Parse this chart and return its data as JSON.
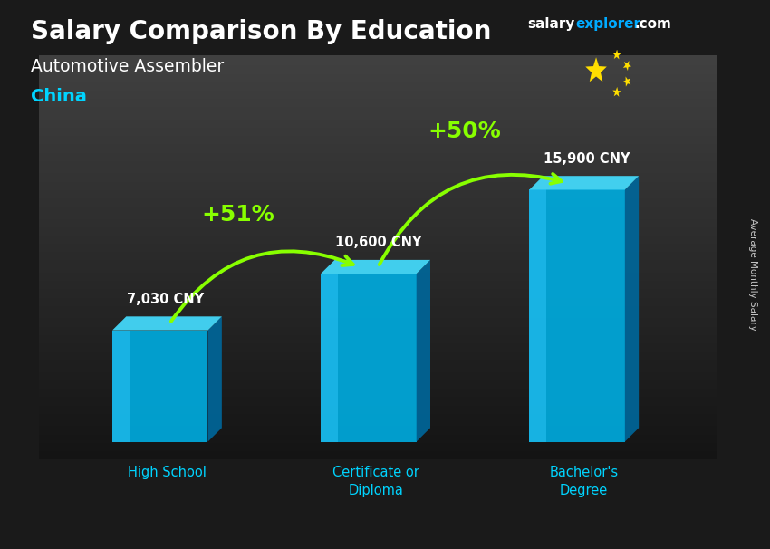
{
  "title_main": "Salary Comparison By Education",
  "title_sub": "Automotive Assembler",
  "title_country": "China",
  "categories": [
    "High School",
    "Certificate or\nDiploma",
    "Bachelor's\nDegree"
  ],
  "values": [
    7030,
    10600,
    15900
  ],
  "value_labels": [
    "7,030 CNY",
    "10,600 CNY",
    "15,900 CNY"
  ],
  "pct_labels": [
    "+51%",
    "+50%"
  ],
  "bar_face_color": "#00aadd",
  "bar_highlight": "#33ccff",
  "bar_side_color": "#006699",
  "bar_top_color": "#44ddff",
  "bg_dark": "#1a1a1a",
  "bg_mid": "#2a2a2a",
  "text_white": "#ffffff",
  "text_cyan": "#00d4ff",
  "text_green": "#88ff00",
  "arrow_green": "#88ff00",
  "brand_color_salary": "#ffffff",
  "brand_color_explorer": "#00aaff",
  "brand_color_dotcom": "#ffffff",
  "ylabel_text": "Average Monthly Salary",
  "flag_red": "#de2910",
  "flag_yellow": "#ffde00",
  "fig_width": 8.5,
  "fig_height": 6.06,
  "bar_positions": [
    1.0,
    2.2,
    3.4
  ],
  "bar_width": 0.55,
  "bar_depth": 0.08,
  "bar_depth_v": 0.04,
  "max_val": 17000,
  "bar_bottom": 0.0
}
